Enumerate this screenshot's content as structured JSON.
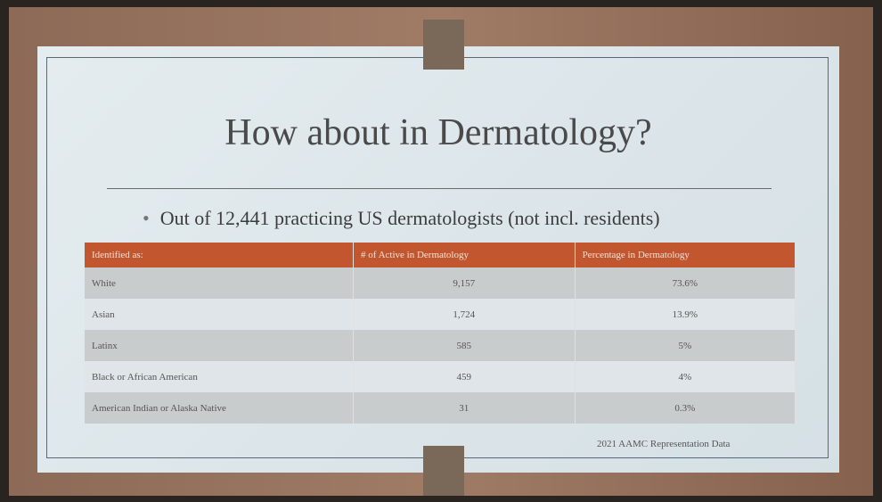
{
  "slide": {
    "title": "How about in Dermatology?",
    "bullet": "Out of 12,441 practicing US dermatologists (not incl. residents)",
    "table": {
      "headers": [
        "Identified as:",
        "# of Active in Dermatology",
        "Percentage in Dermatology"
      ],
      "rows": [
        [
          "White",
          "9,157",
          "73.6%"
        ],
        [
          "Asian",
          "1,724",
          "13.9%"
        ],
        [
          "Latinx",
          "585",
          "5%"
        ],
        [
          "Black or African American",
          "459",
          "4%"
        ],
        [
          "American Indian or Alaska Native",
          "31",
          "0.3%"
        ]
      ]
    },
    "source": "2021 AAMC Representation Data"
  }
}
